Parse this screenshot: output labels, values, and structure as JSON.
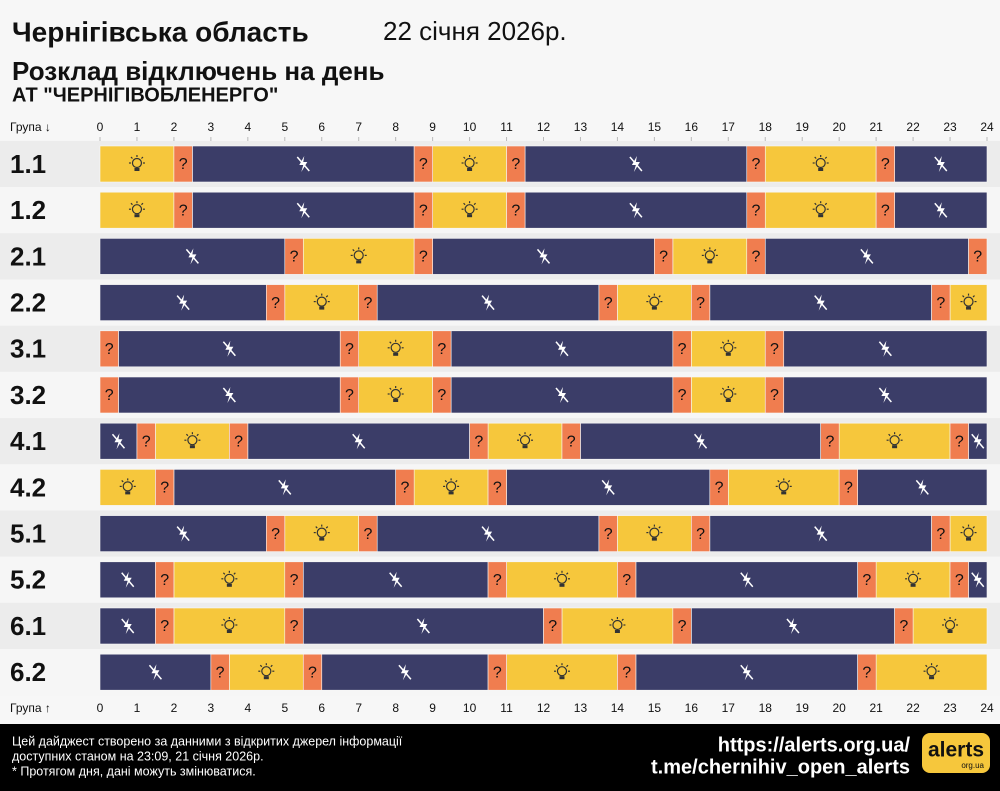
{
  "header": {
    "title": "Чернігівська область",
    "date": "22 січня 2026р.",
    "subtitle": "Розклад відключень на день",
    "company": "АТ \"ЧЕРНІГІВОБЛЕНЕРГО\""
  },
  "footer": {
    "lines": [
      "Цей дайджест створено за данними з відкритих джерел інформації",
      "доступних станом на 23:09, 21 січня 2026р.",
      "* Протягом дня, дані можуть змінюватися."
    ],
    "links": [
      "https://alerts.org.ua/",
      "t.me/chernihiv_open_alerts"
    ],
    "logo": "alerts",
    "logo_sub": "org.ua"
  },
  "chart_data": {
    "type": "timeline",
    "group_header_top": "Група ↓",
    "group_header_bottom": "Група ↑",
    "xlim": [
      0,
      24
    ],
    "xticks": [
      0,
      1,
      2,
      3,
      4,
      5,
      6,
      7,
      8,
      9,
      10,
      11,
      12,
      13,
      14,
      15,
      16,
      17,
      18,
      19,
      20,
      21,
      22,
      23,
      24
    ],
    "colors": {
      "on": "#f6c73c",
      "off": "#3b3d68",
      "maybe": "#f07d4f"
    },
    "maybe_label": "?",
    "groups": [
      {
        "label": "1.1",
        "on": [
          [
            0,
            2
          ],
          [
            9,
            11
          ],
          [
            18,
            21
          ]
        ],
        "off": [
          [
            2.5,
            8.5
          ],
          [
            11.5,
            17.5
          ],
          [
            21.5,
            24
          ]
        ],
        "maybe": [
          [
            2,
            2.5
          ],
          [
            8.5,
            9
          ],
          [
            11,
            11.5
          ],
          [
            17.5,
            18
          ],
          [
            21,
            21.5
          ]
        ]
      },
      {
        "label": "1.2",
        "on": [
          [
            0,
            2
          ],
          [
            9,
            11
          ],
          [
            18,
            21
          ]
        ],
        "off": [
          [
            2.5,
            8.5
          ],
          [
            11.5,
            17.5
          ],
          [
            21.5,
            24
          ]
        ],
        "maybe": [
          [
            2,
            2.5
          ],
          [
            8.5,
            9
          ],
          [
            11,
            11.5
          ],
          [
            17.5,
            18
          ],
          [
            21,
            21.5
          ]
        ]
      },
      {
        "label": "2.1",
        "on": [
          [
            5.5,
            8.5
          ],
          [
            15.5,
            17.5
          ]
        ],
        "off": [
          [
            0,
            5
          ],
          [
            9,
            15
          ],
          [
            18,
            23.5
          ]
        ],
        "maybe": [
          [
            5,
            5.5
          ],
          [
            8.5,
            9
          ],
          [
            15,
            15.5
          ],
          [
            17.5,
            18
          ],
          [
            23.5,
            24
          ]
        ]
      },
      {
        "label": "2.2",
        "on": [
          [
            5,
            7
          ],
          [
            14,
            16
          ],
          [
            23,
            24
          ]
        ],
        "off": [
          [
            0,
            4.5
          ],
          [
            7.5,
            13.5
          ],
          [
            16.5,
            22.5
          ]
        ],
        "maybe": [
          [
            4.5,
            5
          ],
          [
            7,
            7.5
          ],
          [
            13.5,
            14
          ],
          [
            16,
            16.5
          ],
          [
            22.5,
            23
          ]
        ]
      },
      {
        "label": "3.1",
        "on": [
          [
            7,
            9
          ],
          [
            16,
            18
          ]
        ],
        "off": [
          [
            0.5,
            6.5
          ],
          [
            9.5,
            15.5
          ],
          [
            18.5,
            24
          ]
        ],
        "maybe": [
          [
            0,
            0.5
          ],
          [
            6.5,
            7
          ],
          [
            9,
            9.5
          ],
          [
            15.5,
            16
          ],
          [
            18,
            18.5
          ]
        ]
      },
      {
        "label": "3.2",
        "on": [
          [
            7,
            9
          ],
          [
            16,
            18
          ]
        ],
        "off": [
          [
            0.5,
            6.5
          ],
          [
            9.5,
            15.5
          ],
          [
            18.5,
            24
          ]
        ],
        "maybe": [
          [
            0,
            0.5
          ],
          [
            6.5,
            7
          ],
          [
            9,
            9.5
          ],
          [
            15.5,
            16
          ],
          [
            18,
            18.5
          ]
        ]
      },
      {
        "label": "4.1",
        "on": [
          [
            1.5,
            3.5
          ],
          [
            10.5,
            12.5
          ],
          [
            20,
            23
          ]
        ],
        "off": [
          [
            0,
            1
          ],
          [
            4,
            10
          ],
          [
            13,
            19.5
          ],
          [
            23.5,
            24
          ]
        ],
        "maybe": [
          [
            1,
            1.5
          ],
          [
            3.5,
            4
          ],
          [
            10,
            10.5
          ],
          [
            12.5,
            13
          ],
          [
            19.5,
            20
          ],
          [
            23,
            23.5
          ]
        ]
      },
      {
        "label": "4.2",
        "on": [
          [
            0,
            1.5
          ],
          [
            8.5,
            10.5
          ],
          [
            17,
            20
          ]
        ],
        "off": [
          [
            2,
            8
          ],
          [
            11,
            16.5
          ],
          [
            20.5,
            24
          ]
        ],
        "maybe": [
          [
            1.5,
            2
          ],
          [
            8,
            8.5
          ],
          [
            10.5,
            11
          ],
          [
            16.5,
            17
          ],
          [
            20,
            20.5
          ]
        ]
      },
      {
        "label": "5.1",
        "on": [
          [
            5,
            7
          ],
          [
            14,
            16
          ],
          [
            23,
            24
          ]
        ],
        "off": [
          [
            0,
            4.5
          ],
          [
            7.5,
            13.5
          ],
          [
            16.5,
            22.5
          ]
        ],
        "maybe": [
          [
            4.5,
            5
          ],
          [
            7,
            7.5
          ],
          [
            13.5,
            14
          ],
          [
            16,
            16.5
          ],
          [
            22.5,
            23
          ]
        ]
      },
      {
        "label": "5.2",
        "on": [
          [
            2,
            5
          ],
          [
            11,
            14
          ],
          [
            21,
            23
          ]
        ],
        "off": [
          [
            0,
            1.5
          ],
          [
            5.5,
            10.5
          ],
          [
            14.5,
            20.5
          ],
          [
            23.5,
            24
          ]
        ],
        "maybe": [
          [
            1.5,
            2
          ],
          [
            5,
            5.5
          ],
          [
            10.5,
            11
          ],
          [
            14,
            14.5
          ],
          [
            20.5,
            21
          ],
          [
            23,
            23.5
          ]
        ]
      },
      {
        "label": "6.1",
        "on": [
          [
            2,
            5
          ],
          [
            12.5,
            15.5
          ],
          [
            22,
            24
          ]
        ],
        "off": [
          [
            0,
            1.5
          ],
          [
            5.5,
            12
          ],
          [
            16,
            21.5
          ]
        ],
        "maybe": [
          [
            1.5,
            2
          ],
          [
            5,
            5.5
          ],
          [
            12,
            12.5
          ],
          [
            15.5,
            16
          ],
          [
            21.5,
            22
          ]
        ]
      },
      {
        "label": "6.2",
        "on": [
          [
            3.5,
            5.5
          ],
          [
            11,
            14
          ],
          [
            21,
            24
          ]
        ],
        "off": [
          [
            0,
            3
          ],
          [
            6,
            10.5
          ],
          [
            14.5,
            20.5
          ]
        ],
        "maybe": [
          [
            3,
            3.5
          ],
          [
            5.5,
            6
          ],
          [
            10.5,
            11
          ],
          [
            14,
            14.5
          ],
          [
            20.5,
            21
          ]
        ]
      }
    ]
  }
}
